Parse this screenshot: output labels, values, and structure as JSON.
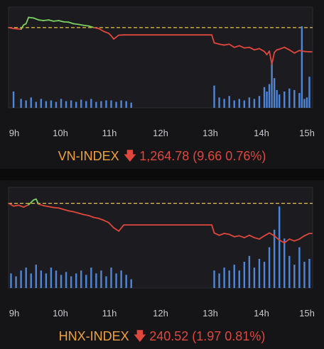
{
  "chart_data": [
    {
      "type": "line",
      "index_name": "VN-INDEX",
      "value": "1,264.78",
      "change": "(9.66 0.76%)",
      "arrow_icon": "down-arrow-icon",
      "x_ticks": [
        "9h",
        "10h",
        "11h",
        "12h",
        "13h",
        "14h",
        "15h"
      ],
      "reference_line": {
        "style": "dashed",
        "color": "#e4c24a"
      },
      "colors": {
        "up": "#7bd160",
        "down": "#e0473c",
        "volume": "#4f86d8",
        "name": "#f2a23a"
      },
      "series": [
        {
          "x": [
            9.0,
            9.1,
            9.25,
            9.3,
            9.35,
            9.4,
            9.5,
            9.6,
            9.7,
            9.8,
            9.9,
            10.0,
            10.1,
            10.2,
            10.3,
            10.4,
            10.5,
            10.6,
            10.7,
            10.8,
            10.9,
            11.0,
            11.05,
            11.1,
            11.2,
            11.3,
            11.4,
            11.5,
            13.0,
            13.05,
            13.15,
            13.25,
            13.35,
            13.45,
            13.55,
            13.65,
            13.75,
            13.85,
            13.95,
            14.05,
            14.1,
            14.15,
            14.2,
            14.25,
            14.3,
            14.35,
            14.45,
            14.55,
            14.65,
            14.75,
            14.85,
            14.95,
            15.0
          ],
          "y": [
            0.0,
            -0.3,
            -0.5,
            0.8,
            1.2,
            3.2,
            3.0,
            2.4,
            2.2,
            2.4,
            2.0,
            2.2,
            1.8,
            1.7,
            1.2,
            1.0,
            0.7,
            0.5,
            0.0,
            -0.3,
            -1.2,
            -1.8,
            -2.6,
            -3.6,
            -2.4,
            -2.3,
            -2.3,
            -2.3,
            -2.3,
            -4.8,
            -5.2,
            -5.5,
            -5.2,
            -6.2,
            -5.7,
            -6.4,
            -6.2,
            -7.0,
            -6.6,
            -7.5,
            -8.5,
            -7.4,
            -11.5,
            -7.8,
            -7.0,
            -6.8,
            -6.2,
            -7.0,
            -8.0,
            -7.2,
            -7.5,
            -7.6,
            -7.6
          ]
        }
      ],
      "volume": {
        "x": [
          9.1,
          9.25,
          9.35,
          9.45,
          9.55,
          9.65,
          9.75,
          9.85,
          9.95,
          10.05,
          10.15,
          10.25,
          10.35,
          10.45,
          10.55,
          10.65,
          10.75,
          10.85,
          10.95,
          11.05,
          11.15,
          11.25,
          11.35,
          11.45,
          13.05,
          13.15,
          13.25,
          13.35,
          13.45,
          13.55,
          13.65,
          13.75,
          13.85,
          13.95,
          14.05,
          14.1,
          14.15,
          14.2,
          14.25,
          14.3,
          14.35,
          14.45,
          14.55,
          14.65,
          14.75,
          14.8,
          14.85,
          14.9,
          14.95
        ],
        "y": [
          22,
          12,
          10,
          14,
          8,
          12,
          9,
          10,
          8,
          12,
          9,
          10,
          8,
          11,
          9,
          12,
          8,
          9,
          10,
          10,
          8,
          10,
          9,
          7,
          30,
          14,
          12,
          16,
          10,
          12,
          10,
          14,
          12,
          16,
          28,
          22,
          32,
          60,
          40,
          24,
          18,
          22,
          26,
          24,
          20,
          110,
          12,
          14,
          42
        ]
      }
    },
    {
      "type": "line",
      "index_name": "HNX-INDEX",
      "value": "240.52",
      "change": "(1.97 0.81%)",
      "arrow_icon": "down-arrow-icon",
      "x_ticks": [
        "9h",
        "10h",
        "11h",
        "12h",
        "13h",
        "14h",
        "15h"
      ],
      "reference_line": {
        "style": "dashed",
        "color": "#e4c24a"
      },
      "colors": {
        "up": "#7bd160",
        "down": "#e0473c",
        "volume": "#4f86d8",
        "name": "#f2a23a"
      },
      "series": [
        {
          "x": [
            9.0,
            9.1,
            9.2,
            9.3,
            9.4,
            9.5,
            9.55,
            9.6,
            9.7,
            9.8,
            9.9,
            10.0,
            10.1,
            10.2,
            10.3,
            10.4,
            10.5,
            10.6,
            10.7,
            10.8,
            10.9,
            11.0,
            11.1,
            11.2,
            11.3,
            11.4,
            11.5,
            13.0,
            13.05,
            13.15,
            13.25,
            13.35,
            13.45,
            13.55,
            13.65,
            13.75,
            13.85,
            13.95,
            14.05,
            14.15,
            14.25,
            14.35,
            14.45,
            14.55,
            14.65,
            14.75,
            14.85,
            14.95,
            15.0
          ],
          "y": [
            0.0,
            -0.6,
            -0.4,
            -0.8,
            -0.3,
            0.7,
            0.9,
            -0.2,
            -0.5,
            -0.7,
            -0.9,
            -1.0,
            -1.3,
            -1.6,
            -1.8,
            -2.1,
            -2.4,
            -2.6,
            -3.0,
            -3.2,
            -3.6,
            -4.1,
            -5.2,
            -5.9,
            -4.6,
            -4.6,
            -4.6,
            -4.6,
            -6.3,
            -6.8,
            -6.4,
            -6.6,
            -7.1,
            -6.9,
            -7.3,
            -6.8,
            -7.3,
            -7.6,
            -6.9,
            -6.3,
            -6.9,
            -7.8,
            -8.4,
            -7.6,
            -8.0,
            -7.6,
            -6.9,
            -6.4,
            -6.4
          ]
        }
      ],
      "volume": {
        "x": [
          9.05,
          9.15,
          9.25,
          9.35,
          9.45,
          9.55,
          9.65,
          9.75,
          9.85,
          9.95,
          10.05,
          10.15,
          10.25,
          10.35,
          10.45,
          10.55,
          10.65,
          10.75,
          10.85,
          10.95,
          11.05,
          11.15,
          11.25,
          11.35,
          11.45,
          13.05,
          13.15,
          13.25,
          13.35,
          13.45,
          13.55,
          13.65,
          13.75,
          13.85,
          13.95,
          14.05,
          14.15,
          14.25,
          14.35,
          14.45,
          14.55,
          14.65,
          14.75,
          14.85,
          14.95
        ],
        "y": [
          10,
          8,
          12,
          14,
          10,
          16,
          12,
          10,
          14,
          12,
          9,
          11,
          8,
          10,
          12,
          9,
          14,
          10,
          12,
          8,
          14,
          10,
          12,
          9,
          6,
          12,
          10,
          14,
          12,
          16,
          12,
          18,
          22,
          14,
          20,
          18,
          28,
          40,
          56,
          34,
          22,
          16,
          28,
          18,
          20
        ]
      }
    }
  ]
}
